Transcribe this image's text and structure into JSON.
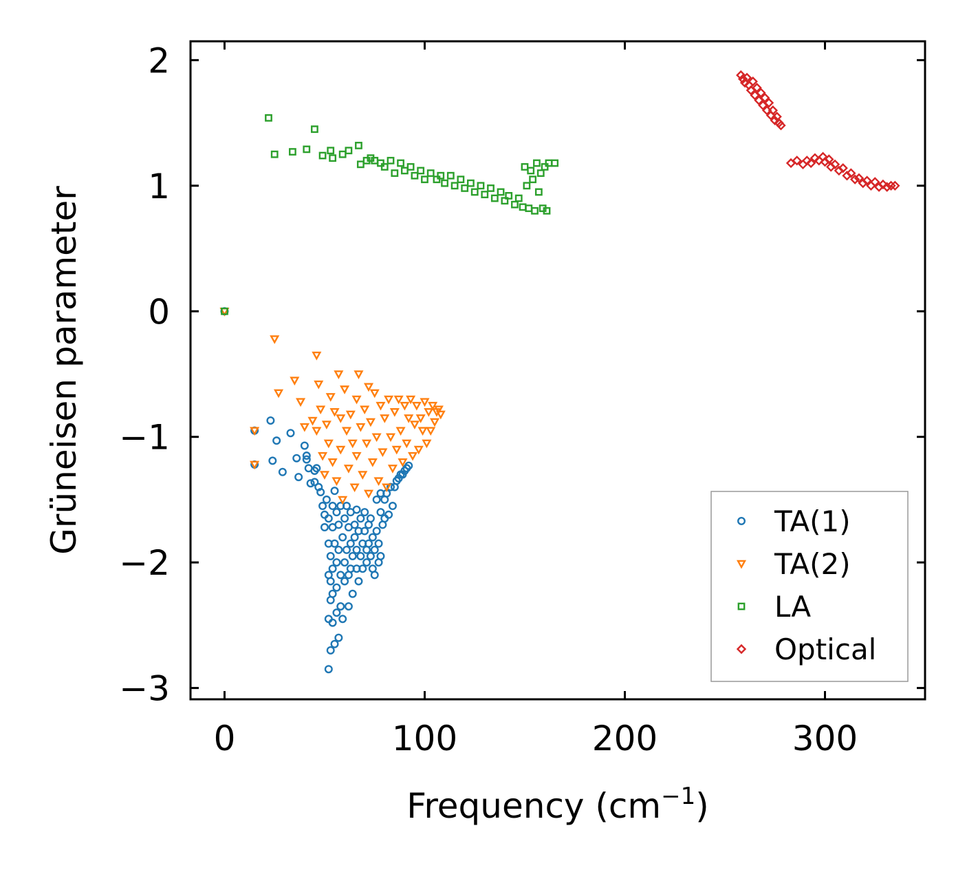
{
  "chart_data": {
    "type": "scatter",
    "title": "",
    "xlabel": "Frequency (cm",
    "xlabel_superscript": "−1",
    "xlabel_suffix": ")",
    "ylabel": "Grüneisen parameter",
    "xlim": [
      -17,
      350
    ],
    "ylim": [
      -3.09,
      2.15
    ],
    "xticks": [
      0,
      100,
      200,
      300
    ],
    "xtick_labels": [
      "0",
      "100",
      "200",
      "300"
    ],
    "yticks": [
      -3,
      -2,
      -1,
      0,
      1,
      2
    ],
    "ytick_labels": [
      "−3",
      "−2",
      "−1",
      "0",
      "1",
      "2"
    ],
    "grid": false,
    "legend_position": "lower-right",
    "legend": [
      "TA(1)",
      "TA(2)",
      "LA",
      "Optical"
    ],
    "series": [
      {
        "name": "TA(1)",
        "marker": "circle",
        "color": "#1f77b4",
        "points": [
          [
            0,
            0
          ],
          [
            15,
            -0.95
          ],
          [
            15,
            -1.22
          ],
          [
            23,
            -0.87
          ],
          [
            24,
            -1.19
          ],
          [
            26,
            -1.03
          ],
          [
            29,
            -1.28
          ],
          [
            33,
            -0.97
          ],
          [
            36,
            -1.17
          ],
          [
            37,
            -1.32
          ],
          [
            40,
            -1.07
          ],
          [
            41,
            -1.15
          ],
          [
            41,
            -1.18
          ],
          [
            42,
            -1.25
          ],
          [
            43,
            -1.37
          ],
          [
            45,
            -1.27
          ],
          [
            45,
            -1.36
          ],
          [
            46,
            -1.25
          ],
          [
            47,
            -1.4
          ],
          [
            48,
            -1.44
          ],
          [
            49,
            -1.55
          ],
          [
            50,
            -1.62
          ],
          [
            50,
            -1.72
          ],
          [
            51,
            -1.5
          ],
          [
            52,
            -1.65
          ],
          [
            52,
            -1.85
          ],
          [
            52,
            -2.1
          ],
          [
            52,
            -2.45
          ],
          [
            52,
            -2.85
          ],
          [
            53,
            -1.95
          ],
          [
            53,
            -2.15
          ],
          [
            53,
            -2.3
          ],
          [
            53,
            -2.7
          ],
          [
            54,
            -1.55
          ],
          [
            54,
            -1.72
          ],
          [
            54,
            -2.05
          ],
          [
            54,
            -2.25
          ],
          [
            54,
            -2.48
          ],
          [
            55,
            -1.43
          ],
          [
            55,
            -1.85
          ],
          [
            55,
            -2.65
          ],
          [
            56,
            -1.6
          ],
          [
            56,
            -2.0
          ],
          [
            56,
            -2.2
          ],
          [
            56,
            -2.4
          ],
          [
            57,
            -1.7
          ],
          [
            57,
            -1.9
          ],
          [
            57,
            -2.6
          ],
          [
            58,
            -1.55
          ],
          [
            58,
            -2.1
          ],
          [
            58,
            -2.35
          ],
          [
            59,
            -1.8
          ],
          [
            59,
            -2.45
          ],
          [
            60,
            -1.65
          ],
          [
            60,
            -2.0
          ],
          [
            60,
            -2.15
          ],
          [
            61,
            -1.55
          ],
          [
            61,
            -1.9
          ],
          [
            62,
            -1.72
          ],
          [
            62,
            -2.1
          ],
          [
            62,
            -2.35
          ],
          [
            63,
            -1.6
          ],
          [
            63,
            -1.85
          ],
          [
            63,
            -2.05
          ],
          [
            64,
            -1.95
          ],
          [
            64,
            -2.25
          ],
          [
            65,
            -1.7
          ],
          [
            65,
            -1.8
          ],
          [
            66,
            -1.58
          ],
          [
            66,
            -1.9
          ],
          [
            66,
            -2.05
          ],
          [
            67,
            -1.75
          ],
          [
            67,
            -2.15
          ],
          [
            68,
            -1.65
          ],
          [
            68,
            -1.95
          ],
          [
            69,
            -1.85
          ],
          [
            69,
            -2.05
          ],
          [
            70,
            -1.6
          ],
          [
            70,
            -1.75
          ],
          [
            71,
            -1.9
          ],
          [
            71,
            -2.0
          ],
          [
            72,
            -1.7
          ],
          [
            72,
            -1.85
          ],
          [
            73,
            -1.65
          ],
          [
            73,
            -1.95
          ],
          [
            74,
            -1.8
          ],
          [
            74,
            -2.05
          ],
          [
            75,
            -1.9
          ],
          [
            75,
            -2.1
          ],
          [
            76,
            -1.5
          ],
          [
            76,
            -1.75
          ],
          [
            77,
            -1.85
          ],
          [
            77,
            -2.0
          ],
          [
            78,
            -1.45
          ],
          [
            78,
            -1.6
          ],
          [
            78,
            -1.95
          ],
          [
            79,
            -1.7
          ],
          [
            80,
            -1.5
          ],
          [
            80,
            -1.65
          ],
          [
            81,
            -1.45
          ],
          [
            82,
            -1.62
          ],
          [
            83,
            -1.4
          ],
          [
            84,
            -1.55
          ],
          [
            85,
            -1.4
          ],
          [
            86,
            -1.35
          ],
          [
            87,
            -1.33
          ],
          [
            88,
            -1.3
          ],
          [
            89,
            -1.3
          ],
          [
            90,
            -1.27
          ],
          [
            91,
            -1.25
          ],
          [
            92,
            -1.23
          ]
        ]
      },
      {
        "name": "TA(2)",
        "marker": "triangle-down",
        "color": "#ff7f0e",
        "points": [
          [
            0,
            0
          ],
          [
            15,
            -0.95
          ],
          [
            15,
            -1.22
          ],
          [
            25,
            -0.22
          ],
          [
            27,
            -0.65
          ],
          [
            35,
            -0.55
          ],
          [
            38,
            -0.72
          ],
          [
            40,
            -0.92
          ],
          [
            44,
            -0.87
          ],
          [
            46,
            -0.35
          ],
          [
            46,
            -0.95
          ],
          [
            47,
            -0.58
          ],
          [
            48,
            -0.78
          ],
          [
            49,
            -1.15
          ],
          [
            50,
            -1.3
          ],
          [
            51,
            -0.9
          ],
          [
            52,
            -1.05
          ],
          [
            53,
            -0.68
          ],
          [
            54,
            -1.2
          ],
          [
            55,
            -0.8
          ],
          [
            56,
            -1.35
          ],
          [
            57,
            -0.5
          ],
          [
            58,
            -0.85
          ],
          [
            58,
            -1.1
          ],
          [
            59,
            -1.5
          ],
          [
            60,
            -0.62
          ],
          [
            61,
            -0.95
          ],
          [
            62,
            -1.25
          ],
          [
            63,
            -0.82
          ],
          [
            64,
            -1.05
          ],
          [
            65,
            -1.4
          ],
          [
            66,
            -0.7
          ],
          [
            66,
            -1.15
          ],
          [
            67,
            -0.5
          ],
          [
            68,
            -0.92
          ],
          [
            69,
            -1.3
          ],
          [
            70,
            -0.78
          ],
          [
            71,
            -1.05
          ],
          [
            72,
            -0.6
          ],
          [
            72,
            -1.45
          ],
          [
            73,
            -0.88
          ],
          [
            74,
            -1.2
          ],
          [
            75,
            -0.65
          ],
          [
            76,
            -1.0
          ],
          [
            77,
            -1.35
          ],
          [
            78,
            -0.75
          ],
          [
            79,
            -1.12
          ],
          [
            80,
            -0.85
          ],
          [
            81,
            -1.4
          ],
          [
            82,
            -0.7
          ],
          [
            83,
            -1.0
          ],
          [
            84,
            -1.25
          ],
          [
            85,
            -0.8
          ],
          [
            86,
            -1.1
          ],
          [
            87,
            -0.7
          ],
          [
            88,
            -0.95
          ],
          [
            89,
            -1.2
          ],
          [
            90,
            -0.75
          ],
          [
            91,
            -1.05
          ],
          [
            92,
            -0.85
          ],
          [
            93,
            -0.7
          ],
          [
            94,
            -1.15
          ],
          [
            95,
            -0.9
          ],
          [
            96,
            -0.75
          ],
          [
            97,
            -1.1
          ],
          [
            98,
            -0.85
          ],
          [
            99,
            -0.95
          ],
          [
            100,
            -0.72
          ],
          [
            101,
            -1.05
          ],
          [
            102,
            -0.8
          ],
          [
            103,
            -0.95
          ],
          [
            104,
            -0.75
          ],
          [
            105,
            -0.88
          ],
          [
            106,
            -0.8
          ],
          [
            107,
            -0.78
          ],
          [
            108,
            -0.82
          ]
        ]
      },
      {
        "name": "LA",
        "marker": "square",
        "color": "#2ca02c",
        "points": [
          [
            0,
            0
          ],
          [
            22,
            1.54
          ],
          [
            25,
            1.25
          ],
          [
            34,
            1.27
          ],
          [
            41,
            1.29
          ],
          [
            45,
            1.45
          ],
          [
            49,
            1.24
          ],
          [
            53,
            1.28
          ],
          [
            54,
            1.22
          ],
          [
            59,
            1.25
          ],
          [
            62,
            1.28
          ],
          [
            67,
            1.32
          ],
          [
            68,
            1.17
          ],
          [
            71,
            1.2
          ],
          [
            73,
            1.22
          ],
          [
            75,
            1.2
          ],
          [
            78,
            1.18
          ],
          [
            80,
            1.15
          ],
          [
            83,
            1.2
          ],
          [
            85,
            1.1
          ],
          [
            88,
            1.18
          ],
          [
            90,
            1.12
          ],
          [
            93,
            1.15
          ],
          [
            95,
            1.08
          ],
          [
            98,
            1.12
          ],
          [
            100,
            1.05
          ],
          [
            103,
            1.1
          ],
          [
            106,
            1.05
          ],
          [
            108,
            1.08
          ],
          [
            110,
            1.02
          ],
          [
            113,
            1.08
          ],
          [
            115,
            1.0
          ],
          [
            118,
            1.05
          ],
          [
            120,
            0.98
          ],
          [
            123,
            1.02
          ],
          [
            125,
            0.95
          ],
          [
            128,
            1.0
          ],
          [
            130,
            0.93
          ],
          [
            133,
            0.98
          ],
          [
            135,
            0.9
          ],
          [
            138,
            0.95
          ],
          [
            140,
            0.88
          ],
          [
            142,
            0.92
          ],
          [
            145,
            0.85
          ],
          [
            147,
            0.9
          ],
          [
            149,
            0.83
          ],
          [
            150,
            1.15
          ],
          [
            151,
            1.0
          ],
          [
            152,
            0.82
          ],
          [
            153,
            1.12
          ],
          [
            154,
            1.05
          ],
          [
            155,
            0.8
          ],
          [
            156,
            1.18
          ],
          [
            157,
            0.95
          ],
          [
            158,
            1.1
          ],
          [
            159,
            0.82
          ],
          [
            160,
            1.15
          ],
          [
            161,
            0.8
          ],
          [
            162,
            1.18
          ],
          [
            165,
            1.18
          ]
        ]
      },
      {
        "name": "Optical",
        "marker": "diamond",
        "color": "#d62728",
        "points": [
          [
            258,
            1.88
          ],
          [
            259,
            1.85
          ],
          [
            260,
            1.82
          ],
          [
            261,
            1.86
          ],
          [
            262,
            1.8
          ],
          [
            263,
            1.76
          ],
          [
            264,
            1.83
          ],
          [
            265,
            1.72
          ],
          [
            266,
            1.78
          ],
          [
            267,
            1.68
          ],
          [
            268,
            1.74
          ],
          [
            269,
            1.64
          ],
          [
            270,
            1.7
          ],
          [
            271,
            1.6
          ],
          [
            272,
            1.66
          ],
          [
            273,
            1.56
          ],
          [
            274,
            1.6
          ],
          [
            275,
            1.52
          ],
          [
            276,
            1.55
          ],
          [
            277,
            1.5
          ],
          [
            278,
            1.48
          ],
          [
            283,
            1.18
          ],
          [
            286,
            1.2
          ],
          [
            289,
            1.17
          ],
          [
            291,
            1.2
          ],
          [
            293,
            1.18
          ],
          [
            295,
            1.22
          ],
          [
            297,
            1.2
          ],
          [
            299,
            1.23
          ],
          [
            300,
            1.19
          ],
          [
            302,
            1.21
          ],
          [
            303,
            1.15
          ],
          [
            305,
            1.17
          ],
          [
            307,
            1.12
          ],
          [
            309,
            1.14
          ],
          [
            311,
            1.08
          ],
          [
            313,
            1.1
          ],
          [
            315,
            1.05
          ],
          [
            317,
            1.06
          ],
          [
            319,
            1.02
          ],
          [
            321,
            1.04
          ],
          [
            323,
            1.0
          ],
          [
            325,
            1.03
          ],
          [
            327,
            0.99
          ],
          [
            329,
            1.01
          ],
          [
            331,
            0.99
          ],
          [
            333,
            1.0
          ],
          [
            335,
            1.0
          ]
        ]
      }
    ]
  }
}
